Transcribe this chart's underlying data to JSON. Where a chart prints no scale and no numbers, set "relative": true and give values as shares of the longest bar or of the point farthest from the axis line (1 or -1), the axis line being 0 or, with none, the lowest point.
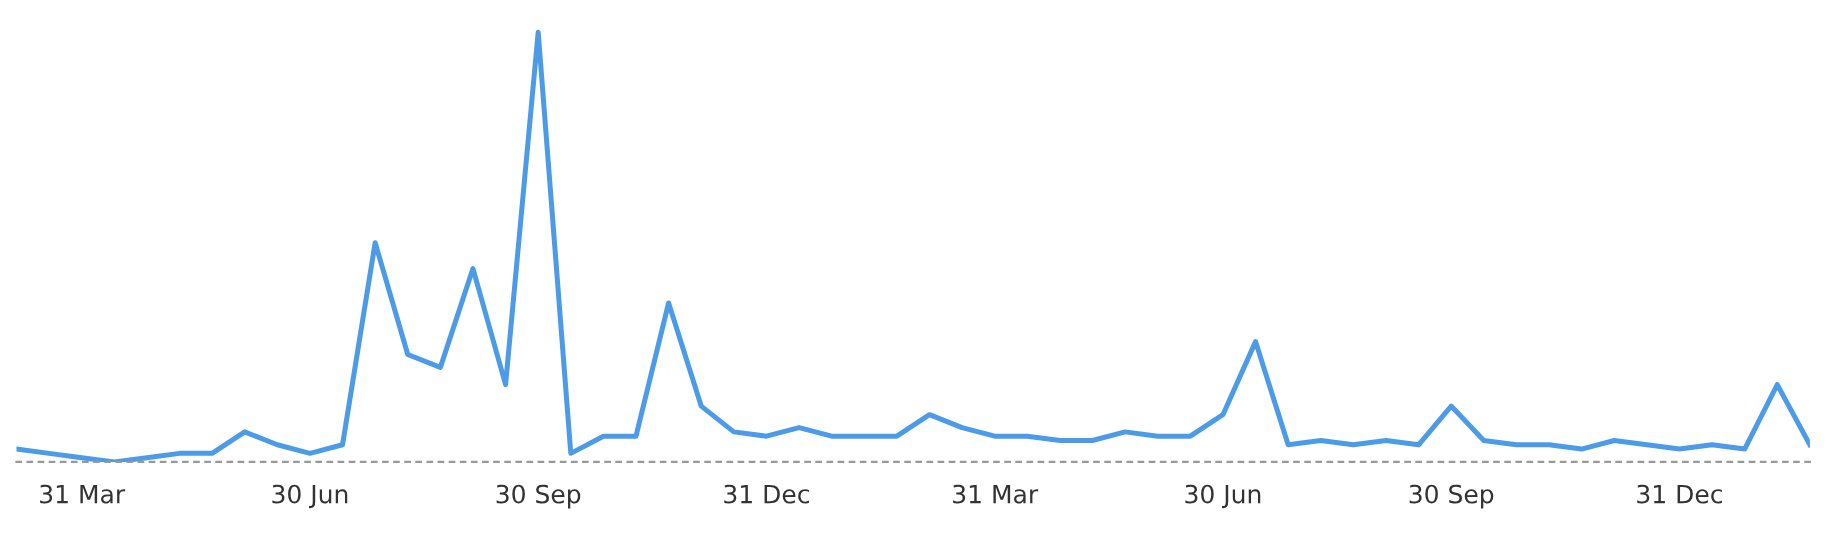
{
  "chart_data": {
    "type": "line",
    "relative": true,
    "marker": "none",
    "line_style": "solid",
    "categories": [
      null,
      null,
      "31 Mar",
      null,
      null,
      null,
      null,
      null,
      null,
      "30 Jun",
      null,
      null,
      null,
      null,
      null,
      null,
      "30 Sep",
      null,
      null,
      null,
      null,
      null,
      null,
      "31 Dec",
      null,
      null,
      null,
      null,
      null,
      null,
      "31 Mar",
      null,
      null,
      null,
      null,
      null,
      null,
      "30 Jun",
      null,
      null,
      null,
      null,
      null,
      null,
      "30 Sep",
      null,
      null,
      null,
      null,
      null,
      null,
      "31 Dec",
      null,
      null,
      null,
      null
    ],
    "series": [
      {
        "color": "#4c9be8",
        "values": [
          0.03,
          0.02,
          0.01,
          0.0,
          0.01,
          0.02,
          0.02,
          0.07,
          0.04,
          0.02,
          0.04,
          0.51,
          0.25,
          0.22,
          0.45,
          0.18,
          1,
          0.02,
          0.06,
          0.06,
          0.37,
          0.13,
          0.07,
          0.06,
          0.08,
          0.06,
          0.06,
          0.06,
          0.11,
          0.08,
          0.06,
          0.06,
          0.05,
          0.05,
          0.07,
          0.06,
          0.06,
          0.11,
          0.28,
          0.04,
          0.05,
          0.04,
          0.05,
          0.04,
          0.13,
          0.05,
          0.04,
          0.04,
          0.03,
          0.05,
          0.04,
          0.03,
          0.04,
          0.03,
          0.18,
          0.04
        ]
      }
    ]
  }
}
